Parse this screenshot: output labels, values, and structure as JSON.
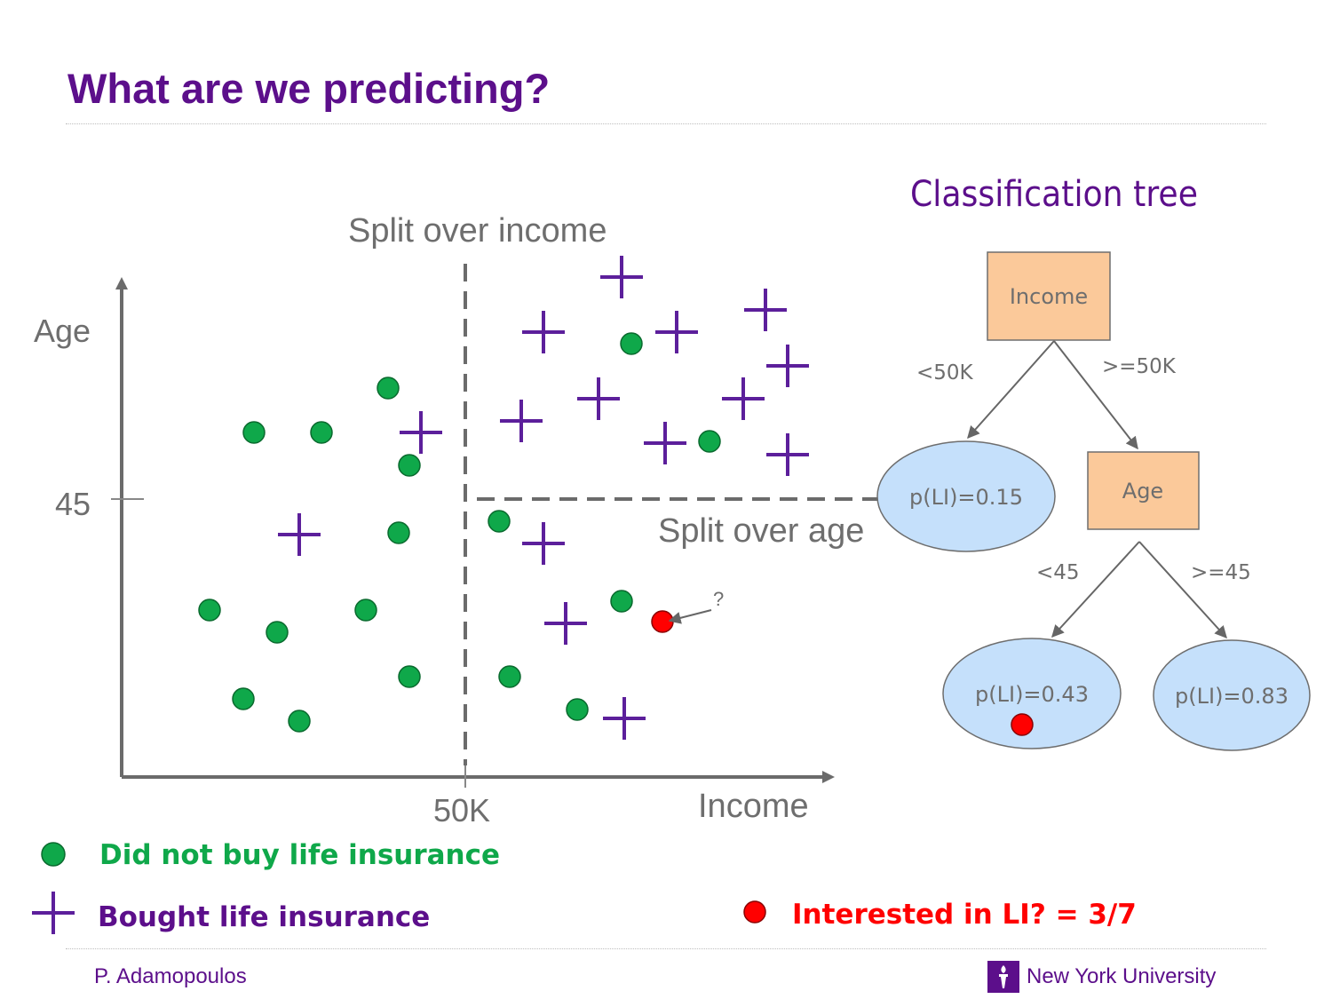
{
  "slide": {
    "title": "What are we predicting?",
    "footer_author": "P. Adamopoulos",
    "footer_university": "New York University",
    "university_logo_icon": "nyu-torch-icon"
  },
  "scatter": {
    "axis_x_label": "Income",
    "axis_y_label": "Age",
    "x_tick_label": "50K",
    "y_tick_label": "45",
    "split_income_label": "Split over income",
    "split_age_label": "Split over age",
    "query_mark": "?",
    "colors": {
      "no_buy": "#0fa84a",
      "bought": "#5c1f9b",
      "query": "#ff0000",
      "axis": "#6b6b6b"
    },
    "no_buy_points": [
      [
        286,
        487
      ],
      [
        362,
        487
      ],
      [
        437,
        437
      ],
      [
        461,
        524
      ],
      [
        449,
        600
      ],
      [
        236,
        687
      ],
      [
        312,
        712
      ],
      [
        412,
        687
      ],
      [
        274,
        787
      ],
      [
        337,
        812
      ],
      [
        461,
        762
      ],
      [
        562,
        587
      ],
      [
        574,
        762
      ],
      [
        650,
        799
      ],
      [
        700,
        677
      ],
      [
        711,
        387
      ],
      [
        799,
        497
      ]
    ],
    "bought_points": [
      [
        474,
        487
      ],
      [
        337,
        602
      ],
      [
        612,
        374
      ],
      [
        700,
        312
      ],
      [
        762,
        374
      ],
      [
        862,
        349
      ],
      [
        887,
        412
      ],
      [
        837,
        449
      ],
      [
        674,
        449
      ],
      [
        587,
        474
      ],
      [
        749,
        499
      ],
      [
        887,
        512
      ],
      [
        612,
        612
      ],
      [
        637,
        702
      ],
      [
        703,
        809
      ]
    ],
    "query_point": [
      746,
      700
    ]
  },
  "legend": {
    "no_buy": "Did not buy life insurance",
    "bought": "Bought life insurance",
    "query": "Interested in LI? = 3/7"
  },
  "tree": {
    "title": "Classification tree",
    "root": "Income",
    "edge_low_income": "<50K",
    "edge_high_income": ">=50K",
    "leaf_low_income": "p(LI)=0.15",
    "age_node": "Age",
    "edge_low_age": "<45",
    "edge_high_age": ">=45",
    "leaf_low_age": "p(LI)=0.43",
    "leaf_high_age": "p(LI)=0.83",
    "colors": {
      "node": "#fbc99a",
      "leaf": "#c5e0fb",
      "text": "#6e6e6e",
      "edge": "#666666"
    }
  }
}
